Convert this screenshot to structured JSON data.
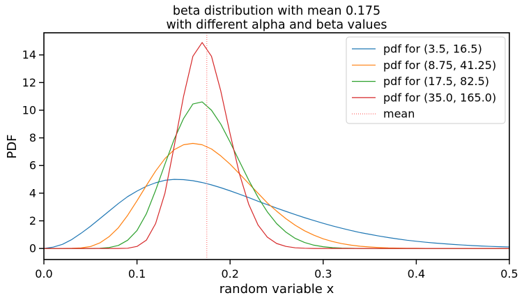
{
  "chart_data": {
    "type": "line",
    "title": [
      "beta distribution with mean 0.175",
      "with different alpha and beta values"
    ],
    "xlabel": "random variable x",
    "ylabel": "PDF",
    "xlim": [
      0.0,
      0.5
    ],
    "ylim": [
      -0.8,
      15.6
    ],
    "xticks": [
      0.0,
      0.1,
      0.2,
      0.3,
      0.4,
      0.5
    ],
    "xtick_labels": [
      "0.0",
      "0.1",
      "0.2",
      "0.3",
      "0.4",
      "0.5"
    ],
    "yticks": [
      0,
      2,
      4,
      6,
      8,
      10,
      12,
      14
    ],
    "ytick_labels": [
      "0",
      "2",
      "4",
      "6",
      "8",
      "10",
      "12",
      "14"
    ],
    "grid": false,
    "legend_position": "top-right",
    "x": [
      0.0,
      0.01,
      0.02,
      0.03,
      0.04,
      0.05,
      0.06,
      0.07,
      0.08,
      0.09,
      0.1,
      0.11,
      0.12,
      0.13,
      0.14,
      0.15,
      0.16,
      0.17,
      0.18,
      0.19,
      0.2,
      0.21,
      0.22,
      0.23,
      0.24,
      0.25,
      0.26,
      0.27,
      0.28,
      0.29,
      0.3,
      0.31,
      0.32,
      0.33,
      0.34,
      0.35,
      0.36,
      0.37,
      0.38,
      0.39,
      0.4,
      0.41,
      0.42,
      0.43,
      0.44,
      0.45,
      0.46,
      0.47,
      0.48,
      0.49,
      0.5
    ],
    "series": [
      {
        "name": "pdf for (3.5, 16.5)",
        "color": "#1f77b4",
        "values": [
          0.0,
          0.1,
          0.3,
          0.65,
          1.1,
          1.6,
          2.15,
          2.7,
          3.25,
          3.75,
          4.15,
          4.5,
          4.75,
          4.93,
          5.0,
          4.98,
          4.9,
          4.77,
          4.6,
          4.4,
          4.17,
          3.93,
          3.68,
          3.42,
          3.17,
          2.92,
          2.68,
          2.45,
          2.23,
          2.02,
          1.82,
          1.63,
          1.46,
          1.3,
          1.15,
          1.02,
          0.9,
          0.79,
          0.69,
          0.6,
          0.52,
          0.45,
          0.39,
          0.34,
          0.29,
          0.25,
          0.21,
          0.18,
          0.15,
          0.13,
          0.11
        ]
      },
      {
        "name": "pdf for (8.75, 41.25)",
        "color": "#ff7f0e",
        "values": [
          0.0,
          0.0,
          0.0,
          0.01,
          0.04,
          0.14,
          0.4,
          0.85,
          1.5,
          2.4,
          3.45,
          4.55,
          5.6,
          6.5,
          7.15,
          7.5,
          7.6,
          7.5,
          7.2,
          6.7,
          6.1,
          5.4,
          4.7,
          4.0,
          3.3,
          2.7,
          2.15,
          1.68,
          1.28,
          0.96,
          0.7,
          0.5,
          0.35,
          0.24,
          0.16,
          0.11,
          0.07,
          0.04,
          0.03,
          0.02,
          0.01,
          0.0,
          0.0,
          0.0,
          0.0,
          0.0,
          0.0,
          0.0,
          0.0,
          0.0,
          0.0
        ]
      },
      {
        "name": "pdf for (17.5, 82.5)",
        "color": "#2ca02c",
        "values": [
          0.0,
          0.0,
          0.0,
          0.0,
          0.0,
          0.0,
          0.02,
          0.07,
          0.22,
          0.6,
          1.3,
          2.5,
          4.2,
          6.1,
          7.9,
          9.4,
          10.45,
          10.6,
          10.0,
          9.0,
          7.7,
          6.3,
          4.95,
          3.7,
          2.65,
          1.8,
          1.18,
          0.73,
          0.43,
          0.24,
          0.13,
          0.06,
          0.03,
          0.01,
          0.0,
          0.0,
          0.0,
          0.0,
          0.0,
          0.0,
          0.0,
          0.0,
          0.0,
          0.0,
          0.0,
          0.0,
          0.0,
          0.0,
          0.0,
          0.0,
          0.0
        ]
      },
      {
        "name": "pdf for (35.0, 165.0)",
        "color": "#d62728",
        "values": [
          0.0,
          0.0,
          0.0,
          0.0,
          0.0,
          0.0,
          0.0,
          0.0,
          0.0,
          0.02,
          0.15,
          0.6,
          1.8,
          4.0,
          7.4,
          11.0,
          13.9,
          14.9,
          13.9,
          11.4,
          8.3,
          5.4,
          3.2,
          1.7,
          0.82,
          0.36,
          0.15,
          0.05,
          0.02,
          0.0,
          0.0,
          0.0,
          0.0,
          0.0,
          0.0,
          0.0,
          0.0,
          0.0,
          0.0,
          0.0,
          0.0,
          0.0,
          0.0,
          0.0,
          0.0,
          0.0,
          0.0,
          0.0,
          0.0,
          0.0,
          0.0
        ]
      }
    ],
    "mean_line": {
      "name": "mean",
      "x": 0.175,
      "color": "#ff5a5a",
      "style": "dotted"
    }
  }
}
